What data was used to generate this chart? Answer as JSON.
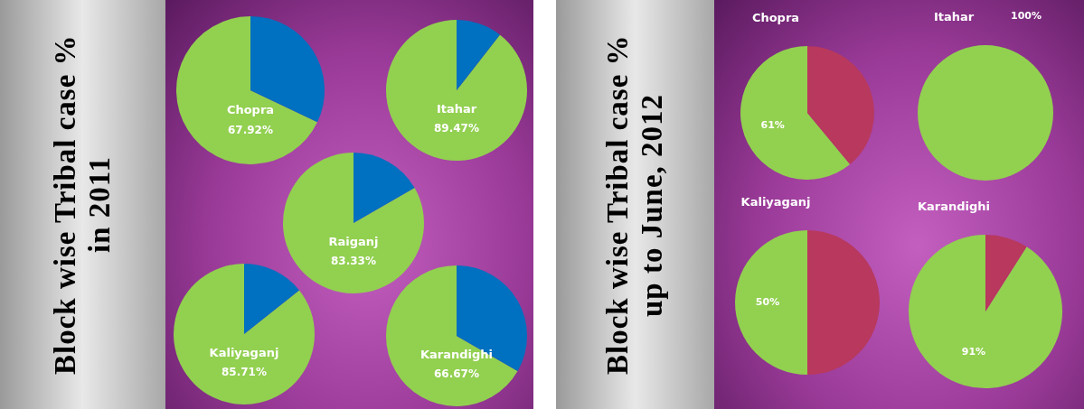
{
  "chart_data": [
    {
      "type": "other",
      "title": "Block wise Tribal case % in 2011"
    },
    {
      "type": "pie",
      "title": "Chopra",
      "categories": [
        null,
        null
      ],
      "values": [
        67.92,
        32.08
      ],
      "colors": [
        "#92d050",
        "#0070c0"
      ],
      "value_labels": [
        "67.92%",
        null
      ]
    },
    {
      "type": "pie",
      "title": "Itahar",
      "categories": [
        null,
        null
      ],
      "values": [
        89.47,
        10.53
      ],
      "colors": [
        "#92d050",
        "#0070c0"
      ],
      "value_labels": [
        "89.47%",
        null
      ]
    },
    {
      "type": "pie",
      "title": "Raiganj",
      "categories": [
        null,
        null
      ],
      "values": [
        83.33,
        16.67
      ],
      "colors": [
        "#92d050",
        "#0070c0"
      ],
      "value_labels": [
        "83.33%",
        null
      ]
    },
    {
      "type": "pie",
      "title": "Kaliyaganj",
      "categories": [
        null,
        null
      ],
      "values": [
        85.71,
        14.29
      ],
      "colors": [
        "#92d050",
        "#0070c0"
      ],
      "value_labels": [
        "85.71%",
        null
      ]
    },
    {
      "type": "pie",
      "title": "Karandighi",
      "categories": [
        null,
        null
      ],
      "values": [
        66.67,
        33.33
      ],
      "colors": [
        "#92d050",
        "#0070c0"
      ],
      "value_labels": [
        "66.67%",
        null
      ]
    },
    {
      "type": "other",
      "title": "Block wise Tribal case % up to June, 2012"
    },
    {
      "type": "pie",
      "title": "Chopra",
      "categories": [
        null,
        null
      ],
      "values": [
        61,
        39
      ],
      "colors": [
        "#92d050",
        "#b8385e"
      ],
      "value_labels": [
        "61%",
        null
      ]
    },
    {
      "type": "pie",
      "title": "Itahar",
      "categories": [
        null
      ],
      "values": [
        100
      ],
      "colors": [
        "#92d050"
      ],
      "value_labels": [
        "100%"
      ]
    },
    {
      "type": "pie",
      "title": "Kaliyaganj",
      "categories": [
        null,
        null
      ],
      "values": [
        50,
        50
      ],
      "colors": [
        "#92d050",
        "#b8385e"
      ],
      "value_labels": [
        "50%",
        null
      ]
    },
    {
      "type": "pie",
      "title": "Karandighi",
      "categories": [
        null,
        null
      ],
      "values": [
        91,
        9
      ],
      "colors": [
        "#92d050",
        "#b8385e"
      ],
      "value_labels": [
        "91%",
        null
      ]
    }
  ]
}
